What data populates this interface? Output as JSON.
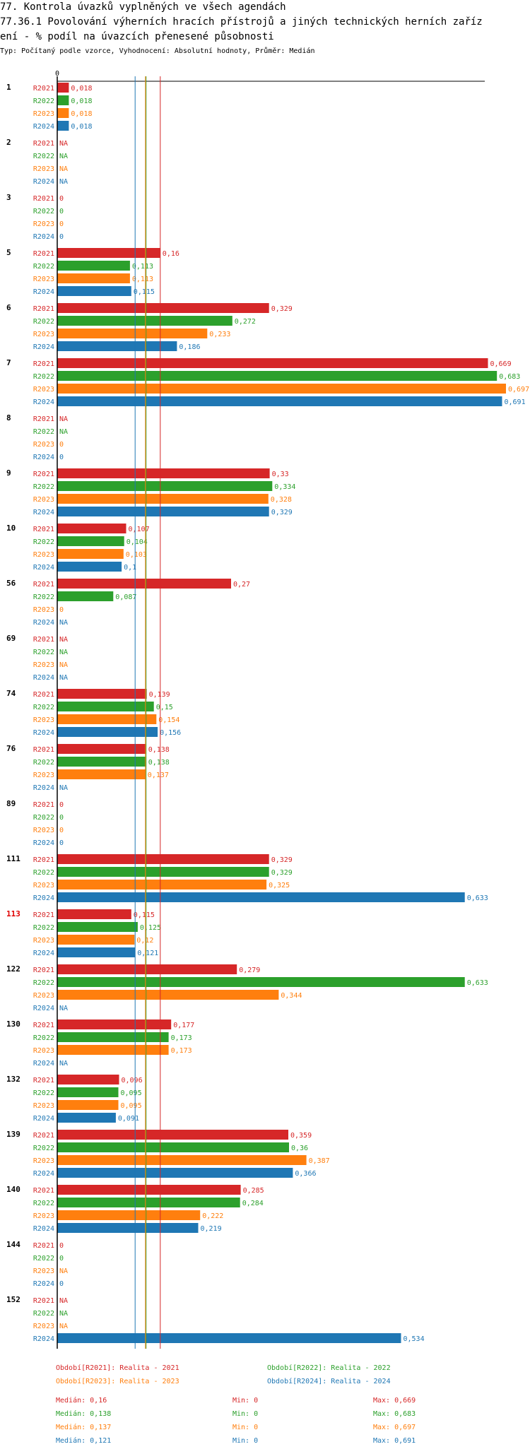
{
  "header": {
    "line1": "77. Kontrola úvazků vyplněných ve všech agendách",
    "line2": "77.36.1 Povolování výherních hracích přístrojů a jiných technických herních zaříz",
    "line3": "ení  - % podíl na úvazcích přenesené působnosti",
    "subtitle": "Typ: Počítaný podle vzorce, Vyhodnocení: Absolutní hodnoty, Průměr: Medián"
  },
  "colors": {
    "R2021": "#d62728",
    "R2022": "#2ca02c",
    "R2023": "#ff7f0e",
    "R2024": "#1f77b4",
    "highlight": "#e00000"
  },
  "chart_data": {
    "type": "bar",
    "orientation": "horizontal",
    "axis_zero_label": "0",
    "xlim": [
      0,
      0.73
    ],
    "series_names": [
      "R2021",
      "R2022",
      "R2023",
      "R2024"
    ],
    "highlight_group": "113",
    "groups": [
      {
        "label": "1",
        "values": [
          0.018,
          0.018,
          0.018,
          0.018
        ],
        "labels": [
          "0,018",
          "0,018",
          "0,018",
          "0,018"
        ]
      },
      {
        "label": "2",
        "values": [
          null,
          null,
          null,
          null
        ],
        "labels": [
          "NA",
          "NA",
          "NA",
          "NA"
        ]
      },
      {
        "label": "3",
        "values": [
          0,
          0,
          0,
          0
        ],
        "labels": [
          "0",
          "0",
          "0",
          "0"
        ]
      },
      {
        "label": "5",
        "values": [
          0.16,
          0.113,
          0.113,
          0.115
        ],
        "labels": [
          "0,16",
          "0,113",
          "0,113",
          "0,115"
        ]
      },
      {
        "label": "6",
        "values": [
          0.329,
          0.272,
          0.233,
          0.186
        ],
        "labels": [
          "0,329",
          "0,272",
          "0,233",
          "0,186"
        ]
      },
      {
        "label": "7",
        "values": [
          0.669,
          0.683,
          0.697,
          0.691
        ],
        "labels": [
          "0,669",
          "0,683",
          "0,697",
          "0,691"
        ]
      },
      {
        "label": "8",
        "values": [
          null,
          null,
          0,
          0
        ],
        "labels": [
          "NA",
          "NA",
          "0",
          "0"
        ]
      },
      {
        "label": "9",
        "values": [
          0.33,
          0.334,
          0.328,
          0.329
        ],
        "labels": [
          "0,33",
          "0,334",
          "0,328",
          "0,329"
        ]
      },
      {
        "label": "10",
        "values": [
          0.107,
          0.104,
          0.103,
          0.1
        ],
        "labels": [
          "0,107",
          "0,104",
          "0,103",
          "0,1"
        ]
      },
      {
        "label": "56",
        "values": [
          0.27,
          0.087,
          0,
          null
        ],
        "labels": [
          "0,27",
          "0,087",
          "0",
          "NA"
        ]
      },
      {
        "label": "69",
        "values": [
          null,
          null,
          null,
          null
        ],
        "labels": [
          "NA",
          "NA",
          "NA",
          "NA"
        ]
      },
      {
        "label": "74",
        "values": [
          0.139,
          0.15,
          0.154,
          0.156
        ],
        "labels": [
          "0,139",
          "0,15",
          "0,154",
          "0,156"
        ]
      },
      {
        "label": "76",
        "values": [
          0.138,
          0.138,
          0.137,
          null
        ],
        "labels": [
          "0,138",
          "0,138",
          "0,137",
          "NA"
        ]
      },
      {
        "label": "89",
        "values": [
          0,
          0,
          0,
          0
        ],
        "labels": [
          "0",
          "0",
          "0",
          "0"
        ]
      },
      {
        "label": "111",
        "values": [
          0.329,
          0.329,
          0.325,
          0.633
        ],
        "labels": [
          "0,329",
          "0,329",
          "0,325",
          "0,633"
        ]
      },
      {
        "label": "113",
        "values": [
          0.115,
          0.125,
          0.12,
          0.121
        ],
        "labels": [
          "0,115",
          "0,125",
          "0,12",
          "0,121"
        ]
      },
      {
        "label": "122",
        "values": [
          0.279,
          0.633,
          0.344,
          null
        ],
        "labels": [
          "0,279",
          "0,633",
          "0,344",
          "NA"
        ]
      },
      {
        "label": "130",
        "values": [
          0.177,
          0.173,
          0.173,
          null
        ],
        "labels": [
          "0,177",
          "0,173",
          "0,173",
          "NA"
        ]
      },
      {
        "label": "132",
        "values": [
          0.096,
          0.095,
          0.095,
          0.091
        ],
        "labels": [
          "0,096",
          "0,095",
          "0,095",
          "0,091"
        ]
      },
      {
        "label": "139",
        "values": [
          0.359,
          0.36,
          0.387,
          0.366
        ],
        "labels": [
          "0,359",
          "0,36",
          "0,387",
          "0,366"
        ]
      },
      {
        "label": "140",
        "values": [
          0.285,
          0.284,
          0.222,
          0.219
        ],
        "labels": [
          "0,285",
          "0,284",
          "0,222",
          "0,219"
        ]
      },
      {
        "label": "144",
        "values": [
          0,
          0,
          null,
          0
        ],
        "labels": [
          "0",
          "0",
          "NA",
          "0"
        ]
      },
      {
        "label": "152",
        "values": [
          null,
          null,
          null,
          0.534
        ],
        "labels": [
          "NA",
          "NA",
          "NA",
          "0,534"
        ]
      }
    ],
    "median_lines": [
      {
        "series": "R2021",
        "value": 0.16
      },
      {
        "series": "R2022",
        "value": 0.138
      },
      {
        "series": "R2023",
        "value": 0.137
      },
      {
        "series": "R2024",
        "value": 0.121
      }
    ],
    "legend": [
      {
        "series": "R2021",
        "text": "Období[R2021]: Realita - 2021"
      },
      {
        "series": "R2022",
        "text": "Období[R2022]: Realita - 2022"
      },
      {
        "series": "R2023",
        "text": "Období[R2023]: Realita - 2023"
      },
      {
        "series": "R2024",
        "text": "Období[R2024]: Realita - 2024"
      }
    ],
    "stats": [
      {
        "series": "R2021",
        "median": "Medián: 0,16",
        "min": "Min: 0",
        "max": "Max: 0,669"
      },
      {
        "series": "R2022",
        "median": "Medián: 0,138",
        "min": "Min: 0",
        "max": "Max: 0,683"
      },
      {
        "series": "R2023",
        "median": "Medián: 0,137",
        "min": "Min: 0",
        "max": "Max: 0,697"
      },
      {
        "series": "R2024",
        "median": "Medián: 0,121",
        "min": "Min: 0",
        "max": "Max: 0,691"
      }
    ]
  }
}
